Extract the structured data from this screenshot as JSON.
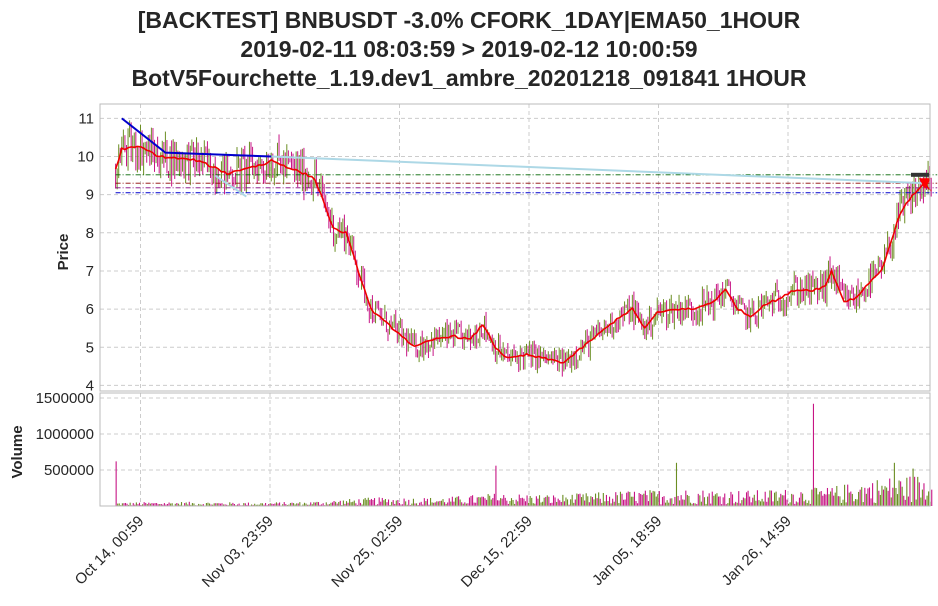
{
  "title": {
    "line1": "[BACKTEST] BNBUSDT -3.0% CFORK_1DAY|EMA50_1HOUR",
    "line2": "2019-02-11 08:03:59 > 2019-02-12 10:00:59",
    "line3": "BotV5Fourchette_1.19.dev1_ambre_20201218_091841 1HOUR"
  },
  "colors": {
    "ema": "#ee0000",
    "candle_up": "#6b8e23",
    "candle_down": "#c71585",
    "fork_line": "#0000cc",
    "trend_line": "#add8e6",
    "level_green": "#006400",
    "level_red": "#8b0000",
    "level_purple": "#800080",
    "level_blue": "#0000cd",
    "grid": "#cccccc",
    "marker": "#ff0000"
  },
  "chart_data": [
    {
      "type": "line",
      "name": "price-panel",
      "ylabel": "Price",
      "ylim": [
        3.9,
        11.3
      ],
      "yticks": [
        4,
        5,
        6,
        7,
        8,
        9,
        10,
        11
      ],
      "x_tick_labels": [
        "Oct 14, 00:59",
        "Nov 03, 23:59",
        "Nov 25, 02:59",
        "Dec 15, 22:59",
        "Jan 05, 18:59",
        "Jan 26, 14:59"
      ],
      "grid": true,
      "ema_keypoints": [
        [
          "Oct 10",
          9.65
        ],
        [
          "Oct 11",
          10.2
        ],
        [
          "Oct 14",
          10.25
        ],
        [
          "Oct 17",
          10.0
        ],
        [
          "Oct 20",
          9.95
        ],
        [
          "Oct 23",
          9.9
        ],
        [
          "Oct 26",
          9.7
        ],
        [
          "Oct 28",
          9.55
        ],
        [
          "Oct 31",
          9.7
        ],
        [
          "Nov 03",
          9.8
        ],
        [
          "Nov 04",
          9.9
        ],
        [
          "Nov 07",
          9.7
        ],
        [
          "Nov 10",
          9.5
        ],
        [
          "Nov 11",
          9.4
        ],
        [
          "Nov 12",
          9.0
        ],
        [
          "Nov 14",
          8.1
        ],
        [
          "Nov 16",
          8.0
        ],
        [
          "Nov 18",
          7.0
        ],
        [
          "Nov 20",
          6.0
        ],
        [
          "Nov 22",
          5.7
        ],
        [
          "Nov 25",
          5.3
        ],
        [
          "Nov 27",
          5.0
        ],
        [
          "Nov 30",
          5.2
        ],
        [
          "Dec 03",
          5.3
        ],
        [
          "Dec 06",
          5.2
        ],
        [
          "Dec 08",
          5.6
        ],
        [
          "Dec 10",
          5.0
        ],
        [
          "Dec 12",
          4.7
        ],
        [
          "Dec 15",
          4.8
        ],
        [
          "Dec 18",
          4.7
        ],
        [
          "Dec 21",
          4.6
        ],
        [
          "Dec 24",
          5.0
        ],
        [
          "Dec 27",
          5.4
        ],
        [
          "Dec 30",
          5.8
        ],
        [
          "Jan 01",
          6.0
        ],
        [
          "Jan 03",
          5.5
        ],
        [
          "Jan 05",
          5.9
        ],
        [
          "Jan 08",
          6.0
        ],
        [
          "Jan 11",
          6.0
        ],
        [
          "Jan 14",
          6.2
        ],
        [
          "Jan 16",
          6.5
        ],
        [
          "Jan 18",
          6.0
        ],
        [
          "Jan 20",
          5.8
        ],
        [
          "Jan 22",
          6.1
        ],
        [
          "Jan 25",
          6.3
        ],
        [
          "Jan 27",
          6.5
        ],
        [
          "Jan 30",
          6.5
        ],
        [
          "Feb 01",
          6.6
        ],
        [
          "Feb 02",
          7.0
        ],
        [
          "Feb 04",
          6.2
        ],
        [
          "Feb 06",
          6.3
        ],
        [
          "Feb 08",
          6.7
        ],
        [
          "Feb 10",
          7.0
        ],
        [
          "Feb 11",
          7.5
        ],
        [
          "Feb 13",
          8.5
        ],
        [
          "Feb 15",
          9.0
        ],
        [
          "Feb 17",
          9.3
        ],
        [
          "Feb 18",
          9.1
        ]
      ],
      "fork_line": [
        [
          "Oct 11",
          11.0
        ],
        [
          "Oct 18",
          10.1
        ],
        [
          "Nov 04",
          10.0
        ]
      ],
      "trend_lines": [
        [
          [
            "Nov 04",
            10.0
          ],
          [
            "Feb 17",
            9.3
          ]
        ],
        [
          [
            "Oct 26",
            9.5
          ],
          [
            "Oct 31",
            8.95
          ]
        ]
      ],
      "levels": [
        {
          "y": 9.52,
          "color": "#006400",
          "style": "dash-dot"
        },
        {
          "y": 9.3,
          "color": "#8b0000",
          "style": "dash-dot"
        },
        {
          "y": 9.18,
          "color": "#800080",
          "style": "dash-dot"
        },
        {
          "y": 9.05,
          "color": "#0000cd",
          "style": "dash-dot"
        }
      ],
      "marker": {
        "x": "Feb 17",
        "y": 9.3
      }
    },
    {
      "type": "bar",
      "name": "volume-panel",
      "ylabel": "Volume",
      "ylim": [
        0,
        1600000
      ],
      "yticks": [
        500000,
        1000000,
        1500000
      ],
      "ytick_labels": [
        "500000",
        "1000000",
        "1500000"
      ],
      "grid": true,
      "volume_keypoints": [
        [
          "Oct 10",
          25000
        ],
        [
          "Oct 20",
          30000
        ],
        [
          "Nov 01",
          25000
        ],
        [
          "Nov 10",
          30000
        ],
        [
          "Nov 20",
          60000
        ],
        [
          "Dec 01",
          60000
        ],
        [
          "Dec 10",
          90000
        ],
        [
          "Dec 20",
          80000
        ],
        [
          "Jan 01",
          110000
        ],
        [
          "Jan 10",
          120000
        ],
        [
          "Jan 20",
          110000
        ],
        [
          "Feb 01",
          130000
        ],
        [
          "Feb 10",
          200000
        ],
        [
          "Feb 18",
          230000
        ]
      ],
      "spikes": [
        [
          "Oct 10",
          620000
        ],
        [
          "Dec 10",
          560000
        ],
        [
          "Jan 08",
          600000
        ],
        [
          "Jan 30",
          1420000
        ],
        [
          "Feb 12",
          600000
        ],
        [
          "Feb 15",
          520000
        ]
      ]
    }
  ]
}
